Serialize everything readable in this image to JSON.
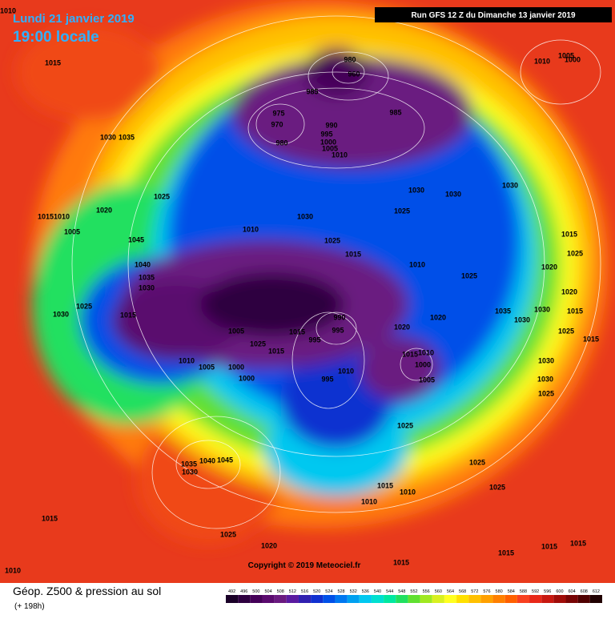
{
  "header": {
    "date": "Lundi 21 janvier 2019",
    "time": "19:00 locale",
    "run": "Run GFS 12 Z du Dimanche 13 janvier 2019",
    "copyright": "Copyright © 2019 Meteociel.fr"
  },
  "footer": {
    "title": "Géop. Z500 & pression au sol",
    "lead": "(+ 198h)"
  },
  "legend": {
    "values": [
      492,
      496,
      500,
      504,
      508,
      512,
      516,
      520,
      524,
      528,
      532,
      536,
      540,
      544,
      548,
      552,
      556,
      560,
      564,
      568,
      572,
      576,
      580,
      584,
      588,
      592,
      596,
      600,
      604,
      608,
      612
    ],
    "colors": [
      "#1a0028",
      "#2e0040",
      "#440058",
      "#5a0a6e",
      "#6a1a80",
      "#5a1aa0",
      "#3020b0",
      "#1030d0",
      "#0050e8",
      "#0078f0",
      "#00a0f0",
      "#00c8f0",
      "#00e0d0",
      "#00e8a0",
      "#20e060",
      "#60e030",
      "#a0e820",
      "#d8f020",
      "#ffff20",
      "#ffe000",
      "#ffc000",
      "#ffa000",
      "#ff8000",
      "#ff6000",
      "#f84020",
      "#e82818",
      "#c81810",
      "#a00c08",
      "#780404",
      "#500000",
      "#200000"
    ]
  },
  "isobar_labels": [
    "1010",
    "1015",
    "1030",
    "1035",
    "1025",
    "1020",
    "1015",
    "1010",
    "1005",
    "1045",
    "1040",
    "1035",
    "1030",
    "1025",
    "1030",
    "1015",
    "1005",
    "1025",
    "1015",
    "1010",
    "1005",
    "1000",
    "1000",
    "980",
    "960",
    "985",
    "975",
    "970",
    "980",
    "990",
    "995",
    "1000",
    "1005",
    "1010",
    "985",
    "1030",
    "1030",
    "1030",
    "1025",
    "1030",
    "1010",
    "1025",
    "1015",
    "1010",
    "1025",
    "1020",
    "1020",
    "990",
    "995",
    "1015",
    "995",
    "1015",
    "1010",
    "1000",
    "1005",
    "995",
    "1010",
    "1025",
    "1035",
    "1030",
    "1030",
    "1015",
    "1025",
    "1020",
    "1020",
    "1015",
    "1025",
    "1015",
    "1030",
    "1030",
    "1025",
    "1010",
    "1005",
    "1000",
    "1025",
    "1025",
    "1015",
    "1010",
    "1010",
    "1035",
    "1040",
    "1045",
    "1030",
    "1015",
    "1025",
    "1020",
    "1015",
    "1015",
    "1015",
    "1015",
    "1010"
  ]
}
